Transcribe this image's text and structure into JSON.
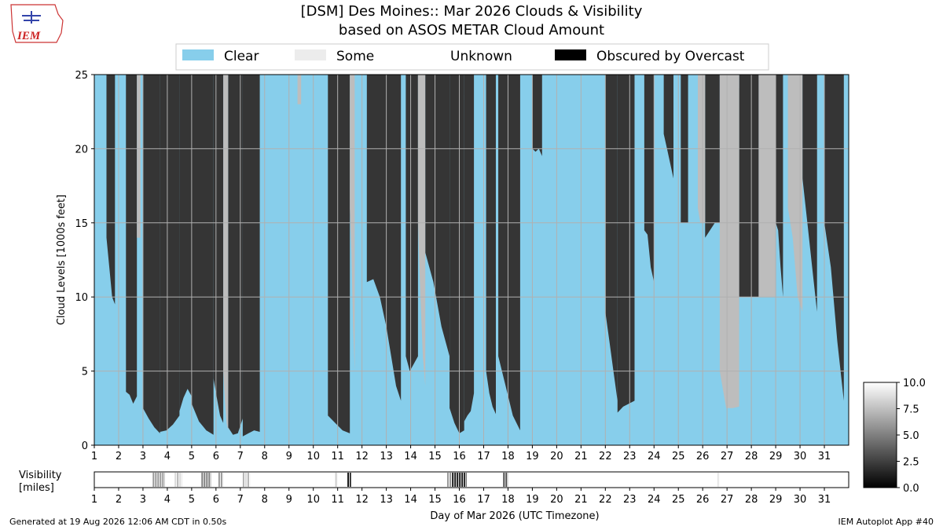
{
  "header": {
    "title_line1": "[DSM] Des Moines:: Mar 2026 Clouds & Visibility",
    "title_line2": "based on ASOS METAR Cloud Amount"
  },
  "logo": {
    "text": "IEM"
  },
  "footer": {
    "generated": "Generated at 19 Aug 2026 12:06 AM CDT in 0.50s",
    "app": "IEM Autoplot App #40"
  },
  "colors": {
    "clear": "#87ceeb",
    "some": "#ececec",
    "few": "#bdbdbd",
    "overcast": "#353535",
    "obscured": "#000000",
    "grid": "#b0b0b0"
  },
  "chart_data": [
    {
      "type": "area",
      "title": "[DSM] Des Moines:: Mar 2026 Clouds & Visibility",
      "subtitle": "based on ASOS METAR Cloud Amount",
      "ylabel": "Cloud Levels [1000s feet]",
      "ylim": [
        0,
        25
      ],
      "xlim": [
        1,
        32
      ],
      "yticks": [
        0,
        5,
        10,
        15,
        20,
        25
      ],
      "xticks": [
        "1",
        "2",
        "3",
        "4",
        "5",
        "6",
        "7",
        "8",
        "9",
        "10",
        "11",
        "12",
        "13",
        "14",
        "15",
        "16",
        "17",
        "18",
        "19",
        "20",
        "21",
        "22",
        "23",
        "24",
        "25",
        "26",
        "27",
        "28",
        "29",
        "30",
        "31"
      ],
      "grid": true,
      "legend": {
        "placement": "top-center",
        "entries": [
          {
            "label": "Clear",
            "color": "#87ceeb"
          },
          {
            "label": "Some",
            "color": "#ececec"
          },
          {
            "label": "Unknown",
            "color": "#ffffff"
          },
          {
            "label": "Obscured by Overcast",
            "color": "#000000"
          }
        ]
      },
      "series": [
        {
          "name": "Obscured by Overcast",
          "description": "overcast cloud base height (1000s ft) by day",
          "spans": [
            {
              "x0": 1.5,
              "x1": 1.85,
              "base": [
                14,
                12,
                10,
                9.5
              ]
            },
            {
              "x0": 2.3,
              "x1": 2.75,
              "base": [
                3.6,
                3.4,
                2.8,
                3.3
              ]
            },
            {
              "x0": 3.0,
              "x1": 3.7,
              "base": [
                2.5,
                1.8,
                1.2,
                0.8
              ]
            },
            {
              "x0": 3.7,
              "x1": 4.5,
              "base": [
                0.9,
                1.0,
                1.4,
                2.0
              ]
            },
            {
              "x0": 4.5,
              "x1": 5.0,
              "base": [
                2.3,
                3.2,
                3.8,
                3.3
              ]
            },
            {
              "x0": 5.0,
              "x1": 5.9,
              "base": [
                2.8,
                1.6,
                1.0,
                0.7
              ]
            },
            {
              "x0": 5.9,
              "x1": 6.3,
              "base": [
                4.5,
                3.2,
                2.0,
                1.5
              ]
            },
            {
              "x0": 6.5,
              "x1": 7.1,
              "base": [
                1.2,
                0.7,
                0.8,
                1.8
              ]
            },
            {
              "x0": 7.1,
              "x1": 7.8,
              "base": [
                0.6,
                0.8,
                1.0,
                0.9
              ]
            },
            {
              "x0": 10.6,
              "x1": 11.5,
              "base": [
                2.0,
                1.5,
                1.0,
                0.8
              ]
            },
            {
              "x0": 12.2,
              "x1": 13.0,
              "base": [
                11,
                11.2,
                10,
                8
              ]
            },
            {
              "x0": 13.0,
              "x1": 13.6,
              "base": [
                8,
                6,
                4,
                3
              ]
            },
            {
              "x0": 13.8,
              "x1": 14.3,
              "base": [
                6,
                5,
                5.5,
                6
              ]
            },
            {
              "x0": 14.6,
              "x1": 15.6,
              "base": [
                13,
                11,
                8,
                6
              ]
            },
            {
              "x0": 15.6,
              "x1": 16.2,
              "base": [
                2.5,
                1.5,
                0.8,
                1.0
              ]
            },
            {
              "x0": 16.2,
              "x1": 16.6,
              "base": [
                1.6,
                2.0,
                2.3,
                3.5
              ]
            },
            {
              "x0": 17.1,
              "x1": 17.5,
              "base": [
                5,
                3.5,
                2.6,
                2.1
              ]
            },
            {
              "x0": 17.6,
              "x1": 18.5,
              "base": [
                6,
                4,
                2,
                1
              ]
            },
            {
              "x0": 19.0,
              "x1": 19.4,
              "base": [
                20,
                19.8,
                20,
                19.5
              ]
            },
            {
              "x0": 22.0,
              "x1": 22.5,
              "base": [
                9,
                7,
                5,
                3
              ]
            },
            {
              "x0": 22.5,
              "x1": 23.2,
              "base": [
                2.2,
                2.6,
                2.8,
                3.0
              ]
            },
            {
              "x0": 23.6,
              "x1": 24.0,
              "base": [
                14.5,
                14.2,
                12,
                11
              ]
            },
            {
              "x0": 24.4,
              "x1": 24.8,
              "base": [
                21,
                20,
                19,
                18
              ]
            },
            {
              "x0": 25.1,
              "x1": 25.4,
              "base": [
                15,
                15,
                15,
                15
              ]
            },
            {
              "x0": 26.1,
              "x1": 26.7,
              "base": [
                14,
                14.5,
                15,
                15
              ]
            },
            {
              "x0": 27.5,
              "x1": 28.3,
              "base": [
                10,
                10,
                10,
                10
              ]
            },
            {
              "x0": 29.0,
              "x1": 29.3,
              "base": [
                15,
                14.5,
                12,
                10
              ]
            },
            {
              "x0": 30.1,
              "x1": 30.7,
              "base": [
                18,
                15,
                12,
                9
              ]
            },
            {
              "x0": 31.0,
              "x1": 31.8,
              "base": [
                15,
                12,
                7,
                3
              ]
            }
          ]
        },
        {
          "name": "Some",
          "description": "scattered / few cloud layers (1000s ft)",
          "spans": [
            {
              "x0": 2.75,
              "x1": 2.9,
              "base": [
                14,
                14,
                14,
                14
              ]
            },
            {
              "x0": 6.3,
              "x1": 6.5,
              "base": [
                5,
                3,
                1.5,
                1
              ]
            },
            {
              "x0": 9.35,
              "x1": 9.5,
              "base": [
                23,
                23,
                23,
                23
              ]
            },
            {
              "x0": 11.5,
              "x1": 11.7,
              "base": [
                16,
                13,
                8,
                5
              ]
            },
            {
              "x0": 14.3,
              "x1": 14.6,
              "base": [
                15,
                10,
                6,
                4
              ]
            },
            {
              "x0": 25.8,
              "x1": 26.1,
              "base": [
                16,
                15,
                15,
                15
              ]
            },
            {
              "x0": 26.7,
              "x1": 27.5,
              "base": [
                5,
                2.5,
                2.5,
                2.6
              ]
            },
            {
              "x0": 28.3,
              "x1": 29.0,
              "base": [
                10,
                10,
                10,
                10
              ]
            },
            {
              "x0": 29.5,
              "x1": 30.1,
              "base": [
                16,
                14,
                10,
                9
              ]
            }
          ]
        }
      ]
    },
    {
      "type": "heatmap",
      "ylabel": "Visibility [miles]",
      "xlabel": "Day of Mar 2026 (UTC Timezone)",
      "xlim": [
        1,
        32
      ],
      "colorbar": {
        "range": [
          0.0,
          10.0
        ],
        "ticks": [
          "10.0",
          "7.5",
          "5.0",
          "2.5",
          "0.0"
        ]
      },
      "series": [
        {
          "name": "Visibility",
          "reduced": [
            {
              "x0": 3.4,
              "x1": 3.9,
              "value": 6
            },
            {
              "x0": 4.3,
              "x1": 4.6,
              "value": 7
            },
            {
              "x0": 5.4,
              "x1": 5.8,
              "value": 5
            },
            {
              "x0": 6.1,
              "x1": 6.3,
              "value": 6
            },
            {
              "x0": 7.1,
              "x1": 7.4,
              "value": 7
            },
            {
              "x0": 10.9,
              "x1": 11.0,
              "value": 8
            },
            {
              "x0": 11.4,
              "x1": 11.55,
              "value": 0.5
            },
            {
              "x0": 15.5,
              "x1": 15.7,
              "value": 6
            },
            {
              "x0": 15.7,
              "x1": 16.3,
              "value": 1
            },
            {
              "x0": 17.8,
              "x1": 18.0,
              "value": 3
            },
            {
              "x0": 26.6,
              "x1": 26.7,
              "value": 9
            }
          ]
        }
      ]
    }
  ]
}
